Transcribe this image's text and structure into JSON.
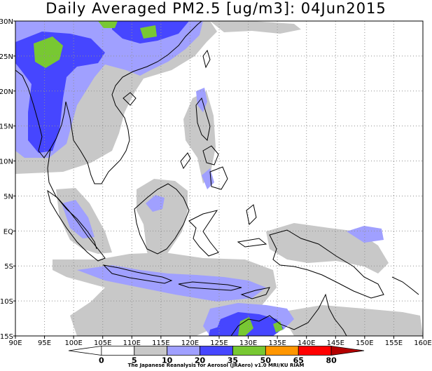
{
  "title": "Daily Averaged PM2.5 [ug/m3]: 04Jun2015",
  "map": {
    "lon_range": [
      90,
      160
    ],
    "lat_range": [
      -15,
      30
    ],
    "lon_ticks": [
      "90E",
      "95E",
      "100E",
      "105E",
      "110E",
      "115E",
      "120E",
      "125E",
      "130E",
      "135E",
      "140E",
      "145E",
      "150E",
      "155E",
      "160E"
    ],
    "lat_ticks": [
      "30N",
      "25N",
      "20N",
      "15N",
      "10N",
      "5N",
      "EQ",
      "5S",
      "10S",
      "15S"
    ]
  },
  "colorbar": {
    "levels": [
      "0",
      "5",
      "10",
      "20",
      "35",
      "50",
      "65",
      "80"
    ],
    "colors": [
      "#ffffff",
      "#ffffff",
      "#c8c8c8",
      "#a0a0ff",
      "#4646ff",
      "#78c832",
      "#ff9600",
      "#ff0000",
      "#b40000"
    ]
  },
  "credit": "The Japanese Reanalysis for Aerosol (JRAero) v1.0 MRI/KU RIAM"
}
